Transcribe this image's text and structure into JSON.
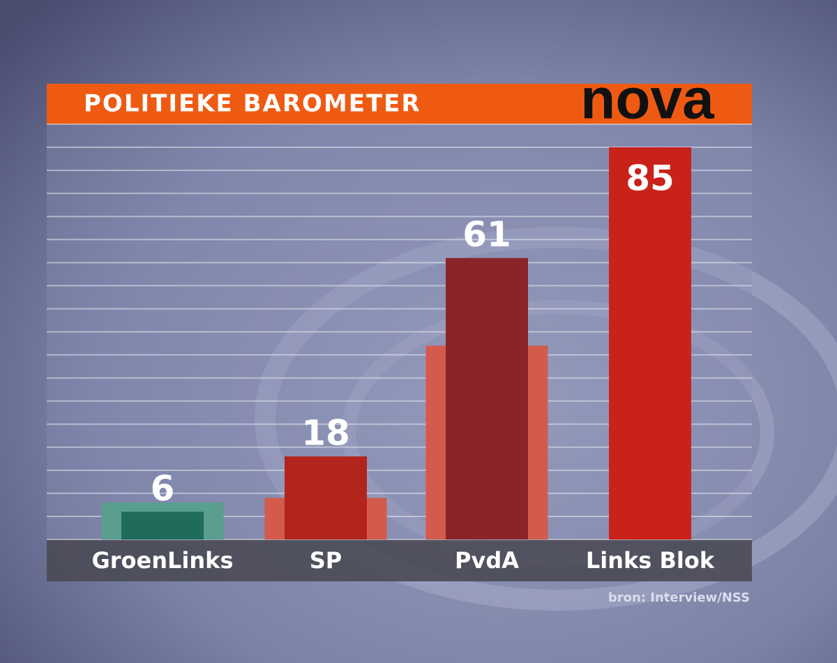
{
  "chart_data": {
    "type": "bar",
    "title": "POLITIEKE BAROMETER",
    "logo": "nova",
    "source": "bron: Interview/NSS",
    "categories": [
      "GroenLinks",
      "SP",
      "PvdA",
      "Links Blok"
    ],
    "series": [
      {
        "colors": [
          "#5a9e90",
          "#d45a4c",
          "#d45a4c",
          "#d45a4c"
        ],
        "values": [
          8,
          9,
          42,
          null
        ]
      },
      {
        "colors": [
          "#1f6b5c",
          "#b3241c",
          "#8b2429",
          "#c8221a"
        ],
        "values": [
          6,
          18,
          61,
          85
        ]
      }
    ],
    "ylim": [
      0,
      90
    ],
    "yticks": [
      0,
      5,
      10,
      15,
      20,
      25,
      30,
      35,
      40,
      45,
      50,
      55,
      60,
      65,
      70,
      75,
      80,
      85,
      90
    ],
    "grid": true
  }
}
